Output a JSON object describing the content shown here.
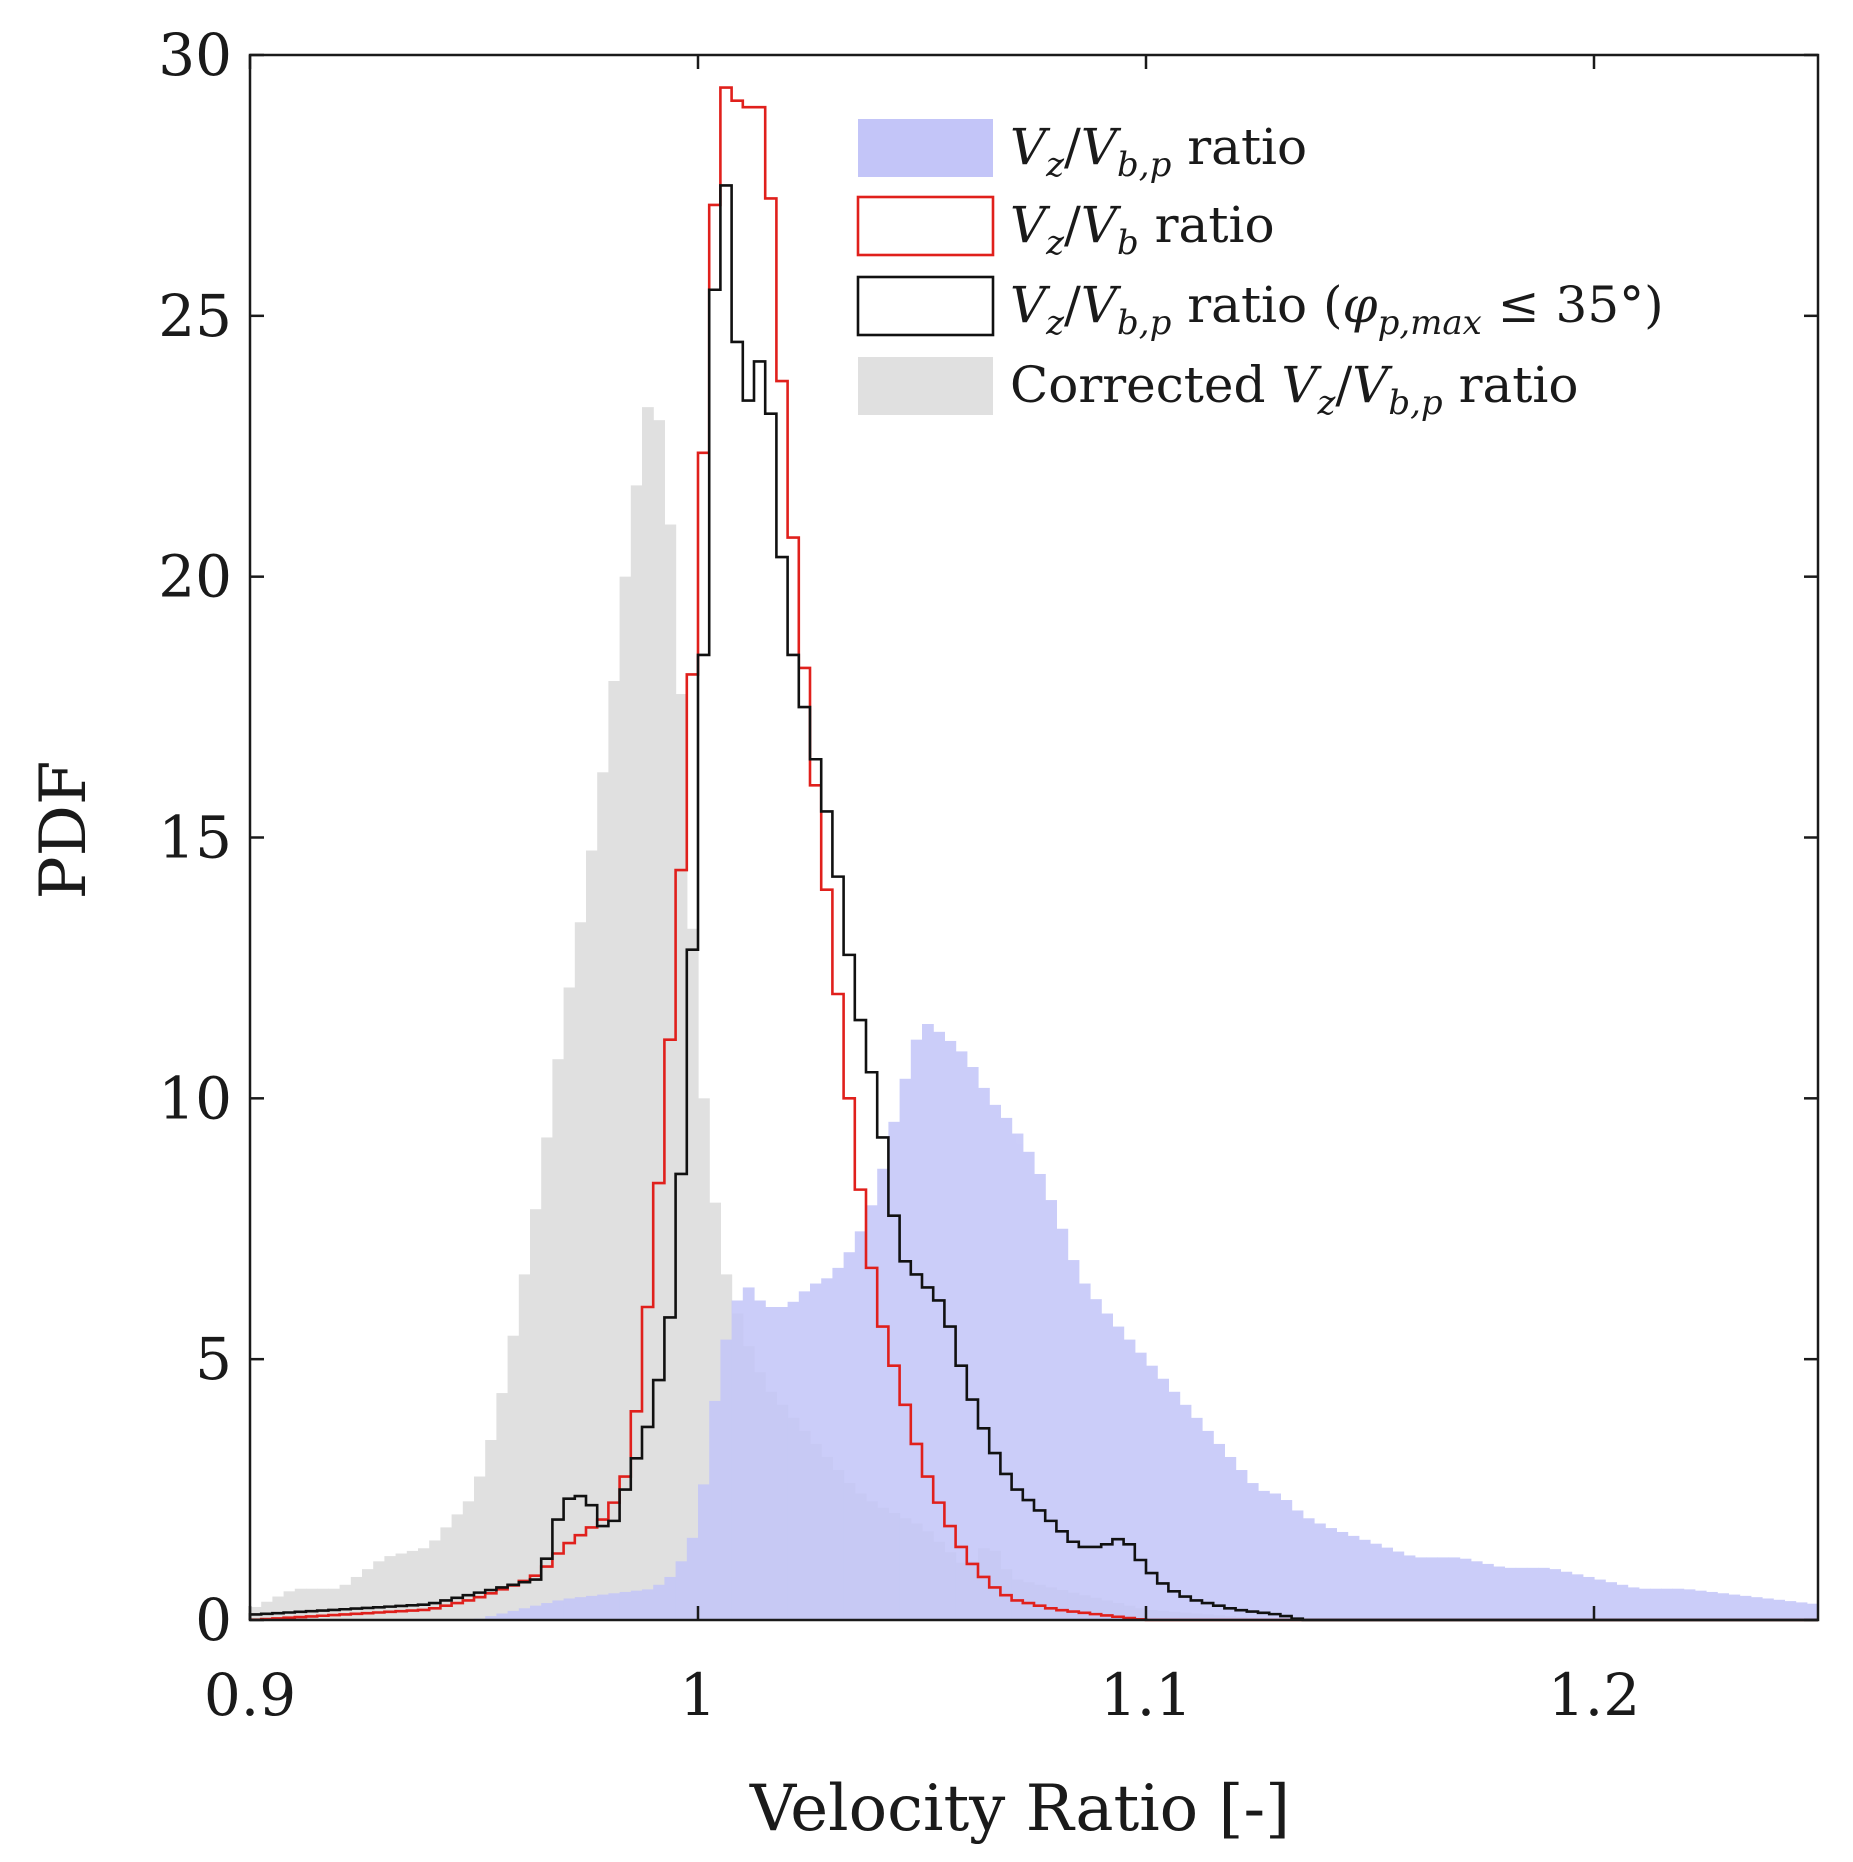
{
  "chart_data": {
    "type": "histogram",
    "xlabel": "Velocity Ratio [-]",
    "ylabel": "PDF",
    "xlim": [
      0.9,
      1.25
    ],
    "ylim": [
      0,
      30
    ],
    "xticks": [
      0.9,
      1.0,
      1.1,
      1.2
    ],
    "xtick_labels": [
      "0.9",
      "1",
      "1.1",
      "1.2"
    ],
    "yticks": [
      0,
      5,
      10,
      15,
      20,
      25,
      30
    ],
    "ytick_labels": [
      "0",
      "5",
      "10",
      "15",
      "20",
      "25",
      "30"
    ],
    "grid": false,
    "legend_placement": "top-right",
    "colors": {
      "blue_fill": "#c3c5f8",
      "gray_fill": "#e0e0e0",
      "red_line": "#e0201c",
      "black_line": "#111111",
      "axis": "#1a1a1a"
    },
    "bin_width": 0.0025,
    "series": [
      {
        "name": "Corrected Vz/Vb,p ratio",
        "legend_label": {
          "sub1": "z",
          "sub2": "b,p",
          "prefix": "Corrected ",
          "suffix": " ratio"
        },
        "style": "filled",
        "color": "#e0e0e0",
        "points": [
          [
            0.9,
            0.2
          ],
          [
            0.91,
            0.6
          ],
          [
            0.92,
            0.6
          ],
          [
            0.93,
            1.2
          ],
          [
            0.94,
            1.4
          ],
          [
            0.95,
            2.4
          ],
          [
            0.955,
            3.8
          ],
          [
            0.96,
            6.0
          ],
          [
            0.965,
            8.5
          ],
          [
            0.97,
            11.5
          ],
          [
            0.975,
            14.0
          ],
          [
            0.98,
            17.0
          ],
          [
            0.985,
            21.0
          ],
          [
            0.99,
            24.0
          ],
          [
            0.995,
            20.0
          ],
          [
            1.0,
            11.0
          ],
          [
            1.005,
            7.0
          ],
          [
            1.01,
            5.5
          ],
          [
            1.015,
            4.5
          ],
          [
            1.02,
            4.0
          ],
          [
            1.025,
            3.5
          ],
          [
            1.03,
            3.0
          ],
          [
            1.035,
            2.5
          ],
          [
            1.04,
            2.2
          ],
          [
            1.045,
            2.0
          ],
          [
            1.05,
            1.8
          ],
          [
            1.055,
            1.4
          ],
          [
            1.06,
            1.0
          ],
          [
            1.065,
            1.5
          ],
          [
            1.07,
            0.8
          ],
          [
            1.08,
            0.6
          ],
          [
            1.09,
            0.4
          ],
          [
            1.1,
            0.2
          ],
          [
            1.13,
            0.0
          ]
        ]
      },
      {
        "name": "Vz/Vb,p ratio",
        "legend_label": {
          "sub1": "z",
          "sub2": "b,p",
          "prefix": "",
          "suffix": " ratio"
        },
        "style": "filled",
        "color": "#c3c5f8",
        "points": [
          [
            0.95,
            0.0
          ],
          [
            0.96,
            0.2
          ],
          [
            0.97,
            0.4
          ],
          [
            0.98,
            0.5
          ],
          [
            0.99,
            0.6
          ],
          [
            0.995,
            0.9
          ],
          [
            1.0,
            1.8
          ],
          [
            1.005,
            5.0
          ],
          [
            1.01,
            6.5
          ],
          [
            1.015,
            6.0
          ],
          [
            1.02,
            6.0
          ],
          [
            1.025,
            6.4
          ],
          [
            1.03,
            6.6
          ],
          [
            1.035,
            7.2
          ],
          [
            1.04,
            8.2
          ],
          [
            1.045,
            10.0
          ],
          [
            1.05,
            11.5
          ],
          [
            1.055,
            11.2
          ],
          [
            1.06,
            10.8
          ],
          [
            1.065,
            10.0
          ],
          [
            1.07,
            9.5
          ],
          [
            1.075,
            8.8
          ],
          [
            1.08,
            7.8
          ],
          [
            1.085,
            6.6
          ],
          [
            1.09,
            6.0
          ],
          [
            1.095,
            5.5
          ],
          [
            1.1,
            5.0
          ],
          [
            1.105,
            4.5
          ],
          [
            1.11,
            4.0
          ],
          [
            1.115,
            3.5
          ],
          [
            1.12,
            3.0
          ],
          [
            1.125,
            2.5
          ],
          [
            1.13,
            2.4
          ],
          [
            1.135,
            2.0
          ],
          [
            1.14,
            1.8
          ],
          [
            1.15,
            1.5
          ],
          [
            1.16,
            1.2
          ],
          [
            1.17,
            1.2
          ],
          [
            1.18,
            1.0
          ],
          [
            1.19,
            1.0
          ],
          [
            1.2,
            0.8
          ],
          [
            1.21,
            0.6
          ],
          [
            1.22,
            0.6
          ],
          [
            1.23,
            0.5
          ],
          [
            1.24,
            0.4
          ],
          [
            1.25,
            0.3
          ]
        ]
      },
      {
        "name": "Vz/Vb ratio",
        "legend_label": {
          "sub1": "z",
          "sub2": "b",
          "prefix": "",
          "suffix": " ratio"
        },
        "style": "step",
        "color": "#e0201c",
        "points": [
          [
            0.9,
            0.0
          ],
          [
            0.92,
            0.1
          ],
          [
            0.94,
            0.2
          ],
          [
            0.95,
            0.4
          ],
          [
            0.96,
            0.7
          ],
          [
            0.965,
            0.9
          ],
          [
            0.97,
            1.4
          ],
          [
            0.975,
            1.7
          ],
          [
            0.98,
            2.0
          ],
          [
            0.985,
            3.0
          ],
          [
            0.99,
            7.0
          ],
          [
            0.995,
            12.5
          ],
          [
            1.0,
            20.0
          ],
          [
            1.005,
            29.5
          ],
          [
            1.01,
            29.0
          ],
          [
            1.015,
            29.0
          ],
          [
            1.02,
            22.0
          ],
          [
            1.025,
            17.0
          ],
          [
            1.03,
            13.0
          ],
          [
            1.035,
            9.0
          ],
          [
            1.04,
            6.0
          ],
          [
            1.045,
            4.5
          ],
          [
            1.05,
            3.0
          ],
          [
            1.055,
            2.0
          ],
          [
            1.06,
            1.2
          ],
          [
            1.065,
            0.7
          ],
          [
            1.07,
            0.4
          ],
          [
            1.075,
            0.3
          ],
          [
            1.08,
            0.2
          ],
          [
            1.09,
            0.1
          ],
          [
            1.1,
            0.0
          ]
        ]
      },
      {
        "name": "Vz/Vb,p ratio (φp,max ≤ 35°)",
        "legend_label": {
          "sub1": "z",
          "sub2": "b,p",
          "prefix": "",
          "suffix": " ratio (",
          "phi_sub": "p,max",
          "tail": " ≤ 35°)"
        },
        "style": "step",
        "color": "#111111",
        "points": [
          [
            0.9,
            0.1
          ],
          [
            0.92,
            0.2
          ],
          [
            0.94,
            0.3
          ],
          [
            0.95,
            0.5
          ],
          [
            0.96,
            0.7
          ],
          [
            0.965,
            0.8
          ],
          [
            0.97,
            2.3
          ],
          [
            0.975,
            2.4
          ],
          [
            0.98,
            1.6
          ],
          [
            0.985,
            2.8
          ],
          [
            0.99,
            4.0
          ],
          [
            0.995,
            6.4
          ],
          [
            1.0,
            15.0
          ],
          [
            1.005,
            29.0
          ],
          [
            1.01,
            23.0
          ],
          [
            1.015,
            24.5
          ],
          [
            1.02,
            19.0
          ],
          [
            1.025,
            17.0
          ],
          [
            1.03,
            15.0
          ],
          [
            1.035,
            12.0
          ],
          [
            1.04,
            10.0
          ],
          [
            1.045,
            7.0
          ],
          [
            1.05,
            6.5
          ],
          [
            1.055,
            6.0
          ],
          [
            1.06,
            4.5
          ],
          [
            1.065,
            3.4
          ],
          [
            1.07,
            2.6
          ],
          [
            1.075,
            2.2
          ],
          [
            1.08,
            1.8
          ],
          [
            1.085,
            1.4
          ],
          [
            1.09,
            1.4
          ],
          [
            1.095,
            1.6
          ],
          [
            1.1,
            1.0
          ],
          [
            1.105,
            0.6
          ],
          [
            1.11,
            0.4
          ],
          [
            1.115,
            0.3
          ],
          [
            1.12,
            0.2
          ],
          [
            1.13,
            0.1
          ],
          [
            1.135,
            0.0
          ]
        ]
      }
    ]
  }
}
